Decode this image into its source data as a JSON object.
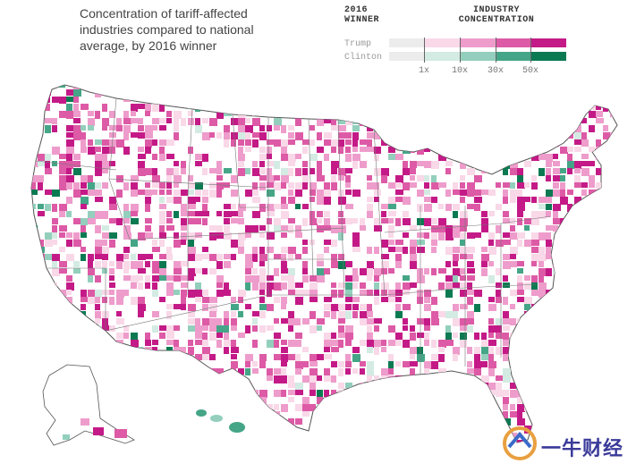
{
  "title": "Concentration of tariff-affected industries compared to national average, by 2016 winner",
  "legend": {
    "winner_heading": "2016 WINNER",
    "concentration_heading": "INDUSTRY CONCENTRATION",
    "rows": [
      {
        "label": "Trump",
        "colors": [
          "#ececec",
          "#f9d8e8",
          "#ee9ccb",
          "#dd5aa6",
          "#c41a87"
        ]
      },
      {
        "label": "Clinton",
        "colors": [
          "#ececec",
          "#d3ebe3",
          "#93cfbc",
          "#45a587",
          "#0b7a52"
        ]
      }
    ],
    "ticks": [
      "1x",
      "10x",
      "30x",
      "50x"
    ]
  },
  "watermark": {
    "text": "一牛财经"
  }
}
